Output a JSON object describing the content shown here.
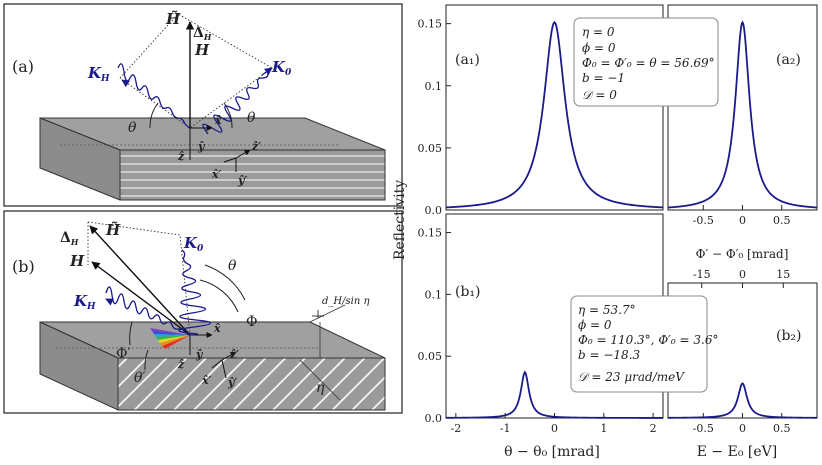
{
  "left": {
    "a": {
      "label": "(a)",
      "H_tilde": "H̃",
      "H": "H",
      "delta": "Δ",
      "delta_sub": "H",
      "K_H": "K",
      "K_H_sub": "H",
      "K_0": "K",
      "K_0_sub": "0",
      "theta_left": "θ",
      "theta_right": "θ",
      "x_hat": "x̂",
      "y_hat": "ŷ",
      "z_hat": "ẑ",
      "x_prime": "x̂′",
      "y_prime": "ŷ′",
      "z_prime": "ẑ′"
    },
    "b": {
      "label": "(b)",
      "H_tilde": "H̃",
      "H": "H",
      "delta": "Δ",
      "delta_sub": "H",
      "K_H": "K",
      "K_H_sub": "H",
      "K_0": "K",
      "K_0_sub": "0",
      "theta": "θ",
      "theta_prime": "θ′",
      "Phi": "Φ",
      "Phi_prime": "Φ′",
      "eta": "η",
      "x_hat": "x̂",
      "y_hat": "ŷ",
      "z_hat": "ẑ",
      "x_prime": "x̂′",
      "y_prime": "ŷ′",
      "z_prime": "ẑ′",
      "dH_label": "d_H/sin η"
    }
  },
  "chart_data": [
    {
      "type": "line",
      "panel": "a1",
      "label": "(a₁)",
      "x_domain": [
        -2.2,
        2.2
      ],
      "ylim": [
        0,
        0.165
      ],
      "yticks": [
        "0.15",
        "0.1",
        "0.05",
        "0.0"
      ],
      "peak": {
        "x": 0.0,
        "y": 0.151,
        "hwhm": 0.26
      },
      "annotation": [
        "η = 0",
        "ϕ = 0",
        "Φ₀ = Φ′₀ = θ = 56.69°",
        "b = −1",
        "𝒟 = 0"
      ]
    },
    {
      "type": "line",
      "panel": "a2",
      "label": "(a₂)",
      "x_domain": [
        -0.95,
        0.95
      ],
      "xticks": [
        "-0.5",
        "0",
        "0.5"
      ],
      "ylim": [
        0,
        0.165
      ],
      "peak": {
        "x": 0.0,
        "y": 0.151,
        "hwhm": 0.11
      }
    },
    {
      "type": "line",
      "panel": "b1",
      "label": "(b₁)",
      "x_domain": [
        -2.2,
        2.2
      ],
      "xticks": [
        "-2",
        "-1",
        "0",
        "1",
        "2"
      ],
      "xlabel": "θ − θ₀ [mrad]",
      "ylim": [
        0,
        0.165
      ],
      "yticks": [
        "0.15",
        "0.1",
        "0.05",
        "0.0"
      ],
      "ylabel": "Reflectivity",
      "peak": {
        "x": -0.6,
        "y": 0.037,
        "hwhm": 0.1
      },
      "annotation": [
        "η = 53.7°",
        "ϕ = 0",
        "Φ₀ = 110.3°, Φ′₀ = 3.6°",
        "b = −18.3",
        "𝒟 = 23 μrad/meV"
      ]
    },
    {
      "type": "line",
      "panel": "b2",
      "label": "(b₂)",
      "x_domain": [
        -0.95,
        0.95
      ],
      "xticks": [
        "-0.5",
        "0",
        "0.5"
      ],
      "xlabel": "E − E₀ [eV]",
      "top_xticks": [
        "-15",
        "0",
        "15"
      ],
      "top_xlabel": "Φ′ − Φ′₀ [mrad]",
      "ylim": [
        0,
        0.165
      ],
      "peak": {
        "x": 0.0,
        "y": 0.028,
        "hwhm": 0.07
      }
    }
  ]
}
